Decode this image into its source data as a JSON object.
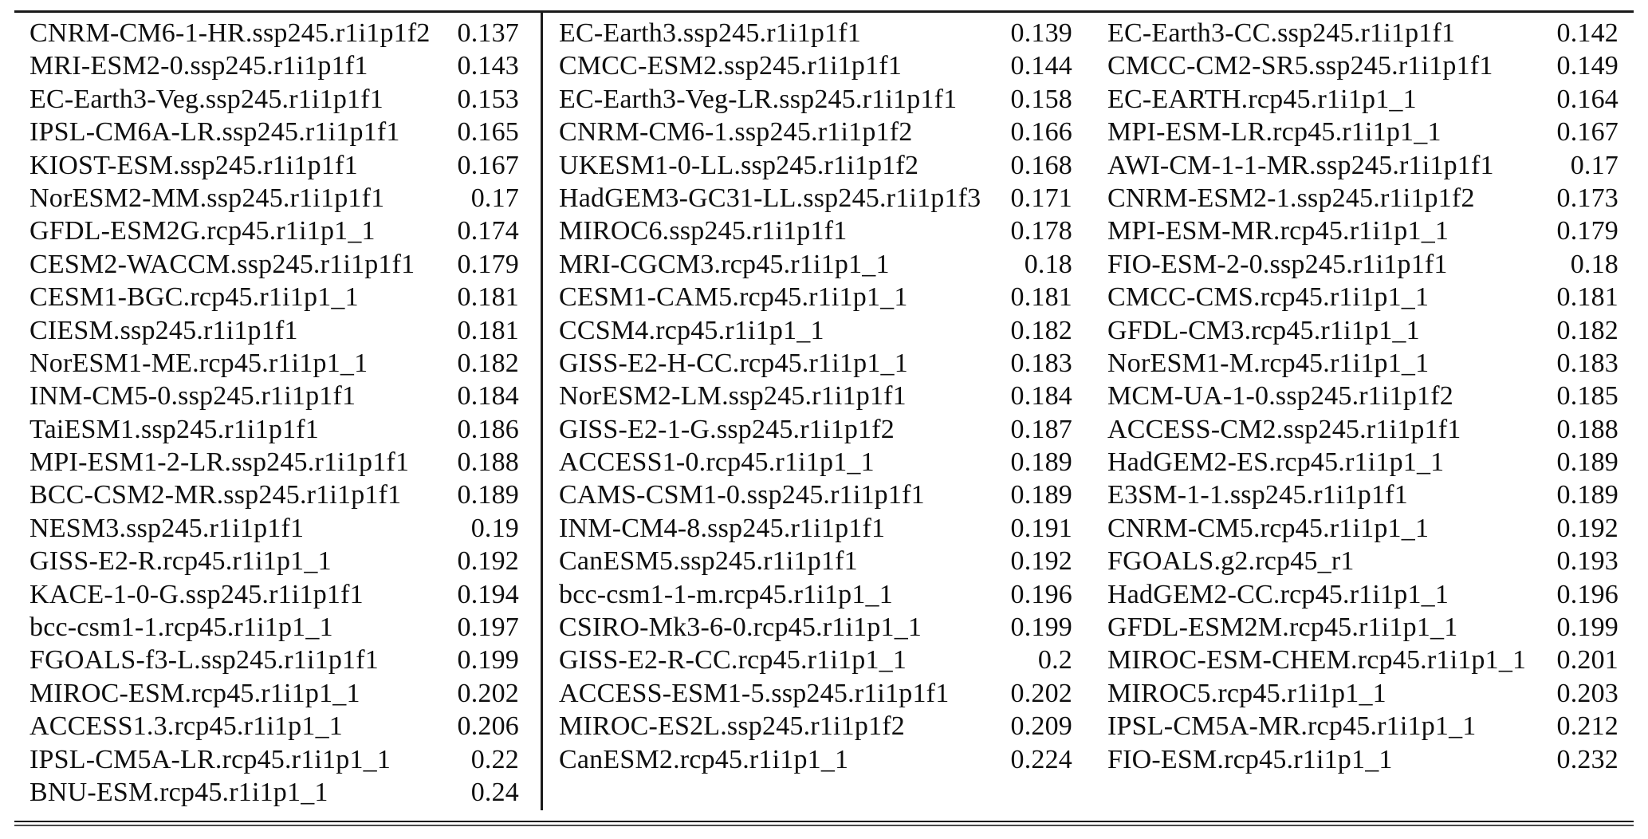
{
  "table": {
    "columns": [
      {
        "rows": [
          {
            "model": "CNRM-CM6-1-HR.ssp245.r1i1p1f2",
            "value": "0.137"
          },
          {
            "model": "MRI-ESM2-0.ssp245.r1i1p1f1",
            "value": "0.143"
          },
          {
            "model": "EC-Earth3-Veg.ssp245.r1i1p1f1",
            "value": "0.153"
          },
          {
            "model": "IPSL-CM6A-LR.ssp245.r1i1p1f1",
            "value": "0.165"
          },
          {
            "model": "KIOST-ESM.ssp245.r1i1p1f1",
            "value": "0.167"
          },
          {
            "model": "NorESM2-MM.ssp245.r1i1p1f1",
            "value": "0.17"
          },
          {
            "model": "GFDL-ESM2G.rcp45.r1i1p1_1",
            "value": "0.174"
          },
          {
            "model": "CESM2-WACCM.ssp245.r1i1p1f1",
            "value": "0.179"
          },
          {
            "model": "CESM1-BGC.rcp45.r1i1p1_1",
            "value": "0.181"
          },
          {
            "model": "CIESM.ssp245.r1i1p1f1",
            "value": "0.181"
          },
          {
            "model": "NorESM1-ME.rcp45.r1i1p1_1",
            "value": "0.182"
          },
          {
            "model": "INM-CM5-0.ssp245.r1i1p1f1",
            "value": "0.184"
          },
          {
            "model": "TaiESM1.ssp245.r1i1p1f1",
            "value": "0.186"
          },
          {
            "model": "MPI-ESM1-2-LR.ssp245.r1i1p1f1",
            "value": "0.188"
          },
          {
            "model": "BCC-CSM2-MR.ssp245.r1i1p1f1",
            "value": "0.189"
          },
          {
            "model": "NESM3.ssp245.r1i1p1f1",
            "value": "0.19"
          },
          {
            "model": "GISS-E2-R.rcp45.r1i1p1_1",
            "value": "0.192"
          },
          {
            "model": "KACE-1-0-G.ssp245.r1i1p1f1",
            "value": "0.194"
          },
          {
            "model": "bcc-csm1-1.rcp45.r1i1p1_1",
            "value": "0.197"
          },
          {
            "model": "FGOALS-f3-L.ssp245.r1i1p1f1",
            "value": "0.199"
          },
          {
            "model": "MIROC-ESM.rcp45.r1i1p1_1",
            "value": "0.202"
          },
          {
            "model": "ACCESS1.3.rcp45.r1i1p1_1",
            "value": "0.206"
          },
          {
            "model": "IPSL-CM5A-LR.rcp45.r1i1p1_1",
            "value": "0.22"
          },
          {
            "model": "BNU-ESM.rcp45.r1i1p1_1",
            "value": "0.24"
          }
        ]
      },
      {
        "rows": [
          {
            "model": "EC-Earth3.ssp245.r1i1p1f1",
            "value": "0.139"
          },
          {
            "model": "CMCC-ESM2.ssp245.r1i1p1f1",
            "value": "0.144"
          },
          {
            "model": "EC-Earth3-Veg-LR.ssp245.r1i1p1f1",
            "value": "0.158"
          },
          {
            "model": "CNRM-CM6-1.ssp245.r1i1p1f2",
            "value": "0.166"
          },
          {
            "model": "UKESM1-0-LL.ssp245.r1i1p1f2",
            "value": "0.168"
          },
          {
            "model": "HadGEM3-GC31-LL.ssp245.r1i1p1f3",
            "value": "0.171"
          },
          {
            "model": "MIROC6.ssp245.r1i1p1f1",
            "value": "0.178"
          },
          {
            "model": "MRI-CGCM3.rcp45.r1i1p1_1",
            "value": "0.18"
          },
          {
            "model": "CESM1-CAM5.rcp45.r1i1p1_1",
            "value": "0.181"
          },
          {
            "model": "CCSM4.rcp45.r1i1p1_1",
            "value": "0.182"
          },
          {
            "model": "GISS-E2-H-CC.rcp45.r1i1p1_1",
            "value": "0.183"
          },
          {
            "model": "NorESM2-LM.ssp245.r1i1p1f1",
            "value": "0.184"
          },
          {
            "model": "GISS-E2-1-G.ssp245.r1i1p1f2",
            "value": "0.187"
          },
          {
            "model": "ACCESS1-0.rcp45.r1i1p1_1",
            "value": "0.189"
          },
          {
            "model": "CAMS-CSM1-0.ssp245.r1i1p1f1",
            "value": "0.189"
          },
          {
            "model": "INM-CM4-8.ssp245.r1i1p1f1",
            "value": "0.191"
          },
          {
            "model": "CanESM5.ssp245.r1i1p1f1",
            "value": "0.192"
          },
          {
            "model": "bcc-csm1-1-m.rcp45.r1i1p1_1",
            "value": "0.196"
          },
          {
            "model": "CSIRO-Mk3-6-0.rcp45.r1i1p1_1",
            "value": "0.199"
          },
          {
            "model": "GISS-E2-R-CC.rcp45.r1i1p1_1",
            "value": "0.2"
          },
          {
            "model": "ACCESS-ESM1-5.ssp245.r1i1p1f1",
            "value": "0.202"
          },
          {
            "model": "MIROC-ES2L.ssp245.r1i1p1f2",
            "value": "0.209"
          },
          {
            "model": "CanESM2.rcp45.r1i1p1_1",
            "value": "0.224"
          }
        ]
      },
      {
        "rows": [
          {
            "model": "EC-Earth3-CC.ssp245.r1i1p1f1",
            "value": "0.142"
          },
          {
            "model": "CMCC-CM2-SR5.ssp245.r1i1p1f1",
            "value": "0.149"
          },
          {
            "model": "EC-EARTH.rcp45.r1i1p1_1",
            "value": "0.164"
          },
          {
            "model": "MPI-ESM-LR.rcp45.r1i1p1_1",
            "value": "0.167"
          },
          {
            "model": "AWI-CM-1-1-MR.ssp245.r1i1p1f1",
            "value": "0.17"
          },
          {
            "model": "CNRM-ESM2-1.ssp245.r1i1p1f2",
            "value": "0.173"
          },
          {
            "model": "MPI-ESM-MR.rcp45.r1i1p1_1",
            "value": "0.179"
          },
          {
            "model": "FIO-ESM-2-0.ssp245.r1i1p1f1",
            "value": "0.18"
          },
          {
            "model": "CMCC-CMS.rcp45.r1i1p1_1",
            "value": "0.181"
          },
          {
            "model": "GFDL-CM3.rcp45.r1i1p1_1",
            "value": "0.182"
          },
          {
            "model": "NorESM1-M.rcp45.r1i1p1_1",
            "value": "0.183"
          },
          {
            "model": "MCM-UA-1-0.ssp245.r1i1p1f2",
            "value": "0.185"
          },
          {
            "model": "ACCESS-CM2.ssp245.r1i1p1f1",
            "value": "0.188"
          },
          {
            "model": "HadGEM2-ES.rcp45.r1i1p1_1",
            "value": "0.189"
          },
          {
            "model": "E3SM-1-1.ssp245.r1i1p1f1",
            "value": "0.189"
          },
          {
            "model": "CNRM-CM5.rcp45.r1i1p1_1",
            "value": "0.192"
          },
          {
            "model": "FGOALS.g2.rcp45_r1",
            "value": "0.193"
          },
          {
            "model": "HadGEM2-CC.rcp45.r1i1p1_1",
            "value": "0.196"
          },
          {
            "model": "GFDL-ESM2M.rcp45.r1i1p1_1",
            "value": "0.199"
          },
          {
            "model": "MIROC-ESM-CHEM.rcp45.r1i1p1_1",
            "value": "0.201"
          },
          {
            "model": "MIROC5.rcp45.r1i1p1_1",
            "value": "0.203"
          },
          {
            "model": "IPSL-CM5A-MR.rcp45.r1i1p1_1",
            "value": "0.212"
          },
          {
            "model": "FIO-ESM.rcp45.r1i1p1_1",
            "value": "0.232"
          }
        ]
      }
    ]
  },
  "colors": {
    "text": "#0f0f0f",
    "rule": "#1a1a1a",
    "background": "#ffffff"
  }
}
